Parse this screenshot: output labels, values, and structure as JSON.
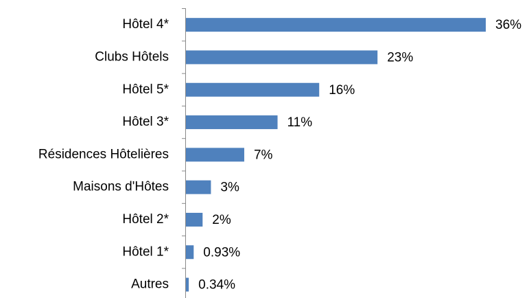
{
  "chart_data": {
    "type": "bar",
    "orientation": "horizontal",
    "color": "#4f81bd",
    "categories": [
      "Hôtel 4*",
      "Clubs Hôtels",
      "Hôtel 5*",
      "Hôtel 3*",
      "Résidences Hôtelières",
      "Maisons d'Hôtes",
      "Hôtel 2*",
      "Hôtel 1*",
      "Autres"
    ],
    "values": [
      36,
      23,
      16,
      11,
      7,
      3,
      2,
      0.93,
      0.34
    ],
    "value_labels": [
      "36%",
      "23%",
      "16%",
      "11%",
      "7%",
      "3%",
      "2%",
      "0.93%",
      "0.34%"
    ]
  }
}
